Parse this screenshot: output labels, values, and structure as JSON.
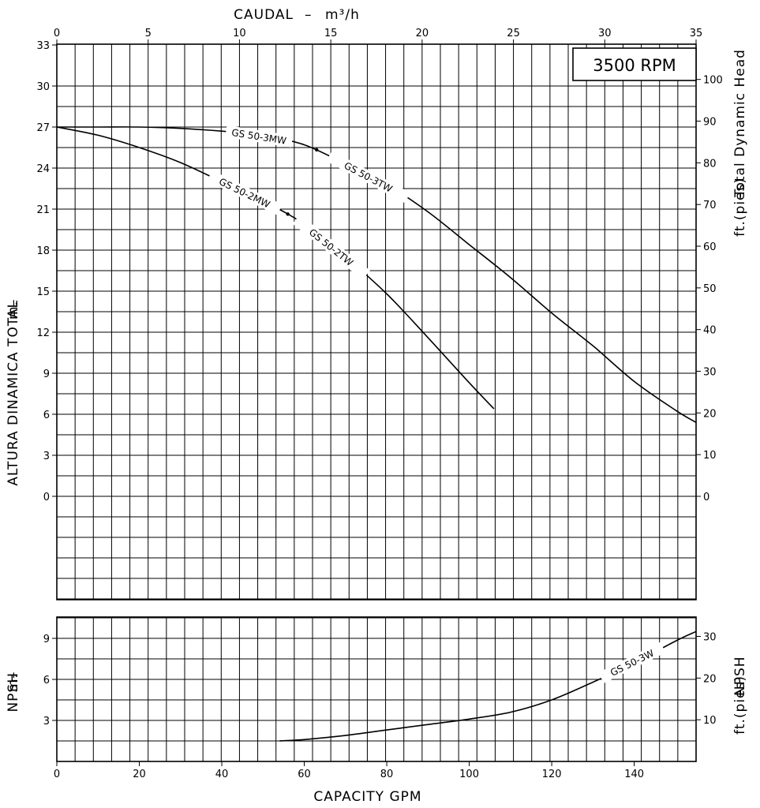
{
  "chart_data": [
    {
      "type": "line",
      "panel": "head",
      "rpm_label": "3500 RPM",
      "top_axis": {
        "label": "CAUDAL",
        "unit": "m³/h",
        "range": [
          0,
          35
        ],
        "ticks": [
          0,
          5,
          10,
          15,
          20,
          25,
          30,
          35
        ]
      },
      "left_axis": {
        "label": "ALTURA DINAMICA TOTAL",
        "unit": "m.",
        "range": [
          0,
          33
        ],
        "ticks": [
          0,
          3,
          6,
          9,
          12,
          15,
          18,
          21,
          24,
          27,
          30,
          33
        ]
      },
      "right_axis": {
        "label": "Total Dynamic Head",
        "unit": "ft.(pies)",
        "ticks": [
          0,
          10,
          20,
          30,
          40,
          50,
          60,
          70,
          80,
          90,
          100
        ]
      },
      "x_unit": "GPM",
      "y_unit": "m",
      "grid": true,
      "series": [
        {
          "name": "GS 50-3MW / GS 50-3TW",
          "labels": [
            "GS 50-3MW",
            "GS 50-3TW"
          ],
          "x": [
            0,
            10,
            20,
            30,
            40,
            50,
            60,
            70,
            80,
            90,
            100,
            110,
            120,
            130,
            140,
            150,
            155
          ],
          "y": [
            27.0,
            27.0,
            27.0,
            26.9,
            26.7,
            26.4,
            25.7,
            24.3,
            22.8,
            20.8,
            18.4,
            16.0,
            13.4,
            11.0,
            8.4,
            6.3,
            5.4
          ]
        },
        {
          "name": "GS 50-2MW / GS 50-2TW",
          "labels": [
            "GS 50-2MW",
            "GS 50-2TW"
          ],
          "x": [
            0,
            10,
            20,
            30,
            40,
            50,
            60,
            70,
            80,
            90,
            100,
            106
          ],
          "y": [
            27.0,
            26.4,
            25.5,
            24.4,
            23.0,
            21.6,
            19.9,
            17.5,
            14.8,
            11.6,
            8.3,
            6.4
          ]
        }
      ]
    },
    {
      "type": "line",
      "panel": "npsh",
      "left_axis": {
        "label": "NPSH",
        "unit": "m.",
        "ticks": [
          3,
          6,
          9
        ]
      },
      "right_axis": {
        "label": "NPSH",
        "unit": "ft.(pies)",
        "ticks": [
          10,
          20,
          30
        ]
      },
      "bottom_axis": {
        "label": "CAPACITY GPM",
        "range": [
          0,
          155
        ],
        "ticks": [
          0,
          20,
          40,
          60,
          80,
          100,
          120,
          140
        ]
      },
      "x_unit": "GPM",
      "y_unit": "m",
      "grid": true,
      "series": [
        {
          "name": "GS 50-3W",
          "labels": [
            "GS 50-3W"
          ],
          "x": [
            54,
            60,
            70,
            80,
            90,
            100,
            110,
            120,
            130,
            140,
            150,
            155
          ],
          "y": [
            1.5,
            1.6,
            1.9,
            2.3,
            2.7,
            3.1,
            3.6,
            4.5,
            5.8,
            7.2,
            8.8,
            9.5
          ]
        }
      ]
    }
  ]
}
